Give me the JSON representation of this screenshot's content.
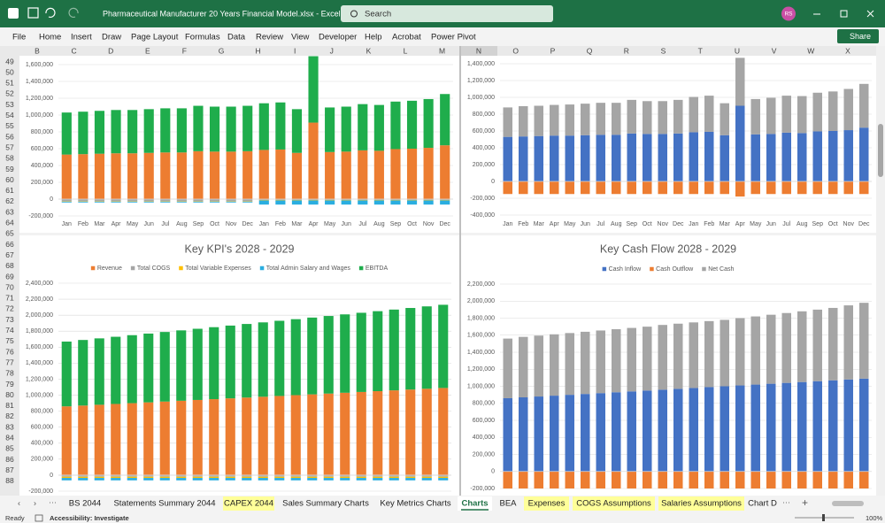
{
  "window": {
    "title": "Pharmaceutical Manufacturer 20 Years Financial Model.xlsx  -  Excel",
    "search": "Search",
    "avatar": "RS"
  },
  "menu": [
    "File",
    "Home",
    "Insert",
    "Draw",
    "Page Layout",
    "Formulas",
    "Data",
    "Review",
    "View",
    "Developer",
    "Help",
    "Acrobat",
    "Power Pivot"
  ],
  "share": "Share",
  "columns_left": [
    "B",
    "C",
    "D",
    "E",
    "F",
    "G",
    "H",
    "I",
    "J",
    "K",
    "L",
    "M"
  ],
  "columns_right": [
    "N",
    "O",
    "P",
    "Q",
    "R",
    "S",
    "T",
    "U",
    "V",
    "W",
    "X"
  ],
  "rows": [
    49,
    50,
    51,
    52,
    53,
    54,
    55,
    56,
    57,
    58,
    59,
    60,
    61,
    62,
    63,
    64,
    65,
    66,
    67,
    68,
    69,
    70,
    71,
    72,
    73,
    74,
    75,
    76,
    77,
    78,
    79,
    80,
    81,
    82,
    83,
    84,
    85,
    86,
    87,
    88
  ],
  "sheet_tabs": [
    "BS 2044",
    "Statements Summary 2044",
    "CAPEX 2044",
    "Sales Summary Charts",
    "Key Metrics Charts",
    "Charts",
    "BEA",
    "Expenses",
    "COGS Assumptions",
    "Salaries Assumptions",
    "Chart D"
  ],
  "active_tab": "Charts",
  "highlighted_tabs": [
    "CAPEX 2044",
    "Expenses",
    "COGS Assumptions",
    "Salaries Assumptions"
  ],
  "status": {
    "ready": "Ready",
    "accessibility": "Accessibility: Investigate",
    "zoom": "100%"
  },
  "chart_data": [
    {
      "type": "bar",
      "stacked": true,
      "grid": true,
      "categories": [
        "Jan",
        "Feb",
        "Mar",
        "Apr",
        "May",
        "Jun",
        "Jul",
        "Aug",
        "Sep",
        "Oct",
        "Nov",
        "Dec",
        "Jan",
        "Feb",
        "Mar",
        "Apr",
        "May",
        "Jun",
        "Jul",
        "Aug",
        "Sep",
        "Oct",
        "Nov",
        "Dec"
      ],
      "ylim": [
        -200000,
        1700000
      ],
      "yticks": [
        {
          "value": -200000,
          "label": "-200,000"
        },
        0,
        {
          "value": 200000,
          "label": "200,000"
        },
        {
          "value": 400000,
          "label": "400,000"
        },
        {
          "value": 600000,
          "label": "600,000"
        },
        {
          "value": 800000,
          "label": "800,000"
        },
        {
          "value": 1000000,
          "label": "1,000,000"
        },
        {
          "value": 1200000,
          "label": "1,200,000"
        },
        {
          "value": 1400000,
          "label": "1,400,000"
        },
        {
          "value": 1600000,
          "label": "1,600,000"
        }
      ],
      "series": [
        {
          "color": "#ed7d31",
          "values": [
            530000,
            535000,
            540000,
            545000,
            545000,
            550000,
            555000,
            555000,
            570000,
            565000,
            565000,
            570000,
            585000,
            590000,
            550000,
            910000,
            560000,
            565000,
            580000,
            575000,
            595000,
            600000,
            610000,
            640000
          ]
        },
        {
          "color": "#a5a5a5",
          "values": [
            -25000,
            -25000,
            -25000,
            -25000,
            -25000,
            -25000,
            -25000,
            -25000,
            -25000,
            -25000,
            -25000,
            -25000,
            -10000,
            -10000,
            -10000,
            -10000,
            -10000,
            -10000,
            -10000,
            -10000,
            -10000,
            -10000,
            -10000,
            -10000
          ]
        },
        {
          "color": "#ffc000",
          "values": [
            -5000,
            -5000,
            -5000,
            -5000,
            -5000,
            -5000,
            -5000,
            -5000,
            -5000,
            -5000,
            -5000,
            -5000,
            -5000,
            -5000,
            -5000,
            -5000,
            -5000,
            -5000,
            -5000,
            -5000,
            -5000,
            -5000,
            -5000,
            -5000
          ]
        },
        {
          "color": "#2aaee0",
          "values": [
            -10000,
            -10000,
            -10000,
            -10000,
            -10000,
            -10000,
            -10000,
            -10000,
            -10000,
            -10000,
            -10000,
            -10000,
            -50000,
            -50000,
            -50000,
            -50000,
            -50000,
            -50000,
            -50000,
            -50000,
            -50000,
            -50000,
            -50000,
            -50000
          ]
        },
        {
          "color": "#1fad4c",
          "values": [
            500000,
            505000,
            510000,
            515000,
            515000,
            520000,
            525000,
            525000,
            540000,
            535000,
            535000,
            540000,
            555000,
            560000,
            520000,
            790000,
            530000,
            535000,
            550000,
            545000,
            565000,
            570000,
            580000,
            610000
          ]
        }
      ]
    },
    {
      "type": "bar",
      "stacked": true,
      "grid": true,
      "categories": [
        "Jan",
        "Feb",
        "Mar",
        "Apr",
        "May",
        "Jun",
        "Jul",
        "Aug",
        "Sep",
        "Oct",
        "Nov",
        "Dec",
        "Jan",
        "Feb",
        "Mar",
        "Apr",
        "May",
        "Jun",
        "Jul",
        "Aug",
        "Sep",
        "Oct",
        "Nov",
        "Dec"
      ],
      "ylim": [
        -400000,
        1500000
      ],
      "yticks": [
        {
          "value": -400000,
          "label": "-400,000"
        },
        {
          "value": -200000,
          "label": "-200,000"
        },
        0,
        {
          "value": 200000,
          "label": "200,000"
        },
        {
          "value": 400000,
          "label": "400,000"
        },
        {
          "value": 600000,
          "label": "600,000"
        },
        {
          "value": 800000,
          "label": "800,000"
        },
        {
          "value": 1000000,
          "label": "1,000,000"
        },
        {
          "value": 1200000,
          "label": "1,200,000"
        },
        {
          "value": 1400000,
          "label": "1,400,000"
        }
      ],
      "series": [
        {
          "color": "#4472c4",
          "values": [
            530000,
            535000,
            540000,
            545000,
            545000,
            550000,
            555000,
            555000,
            570000,
            565000,
            565000,
            570000,
            585000,
            590000,
            550000,
            900000,
            560000,
            565000,
            580000,
            575000,
            595000,
            600000,
            610000,
            640000
          ]
        },
        {
          "color": "#ed7d31",
          "values": [
            -150000,
            -150000,
            -150000,
            -150000,
            -150000,
            -150000,
            -150000,
            -150000,
            -150000,
            -150000,
            -150000,
            -150000,
            -150000,
            -150000,
            -150000,
            -180000,
            -150000,
            -150000,
            -150000,
            -150000,
            -150000,
            -150000,
            -150000,
            -150000
          ]
        },
        {
          "color": "#a5a5a5",
          "values": [
            350000,
            360000,
            360000,
            365000,
            370000,
            375000,
            380000,
            380000,
            400000,
            390000,
            390000,
            400000,
            420000,
            430000,
            380000,
            570000,
            420000,
            430000,
            440000,
            440000,
            460000,
            470000,
            490000,
            520000
          ]
        }
      ]
    },
    {
      "type": "bar",
      "stacked": true,
      "grid": true,
      "title": "Key KPI's 2028 - 2029",
      "ylim": [
        -200000,
        2400000
      ],
      "yticks": [
        {
          "value": -200000,
          "label": "-200,000"
        },
        0,
        {
          "value": 200000,
          "label": "200,000"
        },
        {
          "value": 400000,
          "label": "400,000"
        },
        {
          "value": 600000,
          "label": "600,000"
        },
        {
          "value": 800000,
          "label": "800,000"
        },
        {
          "value": 1000000,
          "label": "1,000,000"
        },
        {
          "value": 1200000,
          "label": "1,200,000"
        },
        {
          "value": 1400000,
          "label": "1,400,000"
        },
        {
          "value": 1600000,
          "label": "1,600,000"
        },
        {
          "value": 1800000,
          "label": "1,800,000"
        },
        {
          "value": 2000000,
          "label": "2,000,000"
        },
        {
          "value": 2200000,
          "label": "2,200,000"
        },
        {
          "value": 2400000,
          "label": "2,400,000"
        }
      ],
      "series": [
        {
          "name": "Revenue",
          "color": "#ed7d31",
          "values": [
            860000,
            870000,
            880000,
            890000,
            900000,
            910000,
            920000,
            930000,
            940000,
            950000,
            960000,
            970000,
            980000,
            990000,
            1000000,
            1010000,
            1020000,
            1030000,
            1040000,
            1050000,
            1060000,
            1070000,
            1080000,
            1090000
          ]
        },
        {
          "name": "Total COGS",
          "color": "#a5a5a5",
          "values": [
            -20000,
            -20000,
            -20000,
            -20000,
            -20000,
            -20000,
            -20000,
            -20000,
            -20000,
            -20000,
            -20000,
            -20000,
            -20000,
            -20000,
            -20000,
            -20000,
            -20000,
            -20000,
            -20000,
            -20000,
            -20000,
            -20000,
            -20000,
            -20000
          ]
        },
        {
          "name": "Total Variable Expenses",
          "color": "#ffc000",
          "values": [
            -15000,
            -15000,
            -15000,
            -15000,
            -15000,
            -15000,
            -15000,
            -15000,
            -15000,
            -15000,
            -15000,
            -15000,
            -15000,
            -15000,
            -15000,
            -15000,
            -15000,
            -15000,
            -15000,
            -15000,
            -15000,
            -15000,
            -15000,
            -15000
          ]
        },
        {
          "name": "Total Admin Salary and Wages",
          "color": "#2aaee0",
          "values": [
            -30000,
            -30000,
            -30000,
            -30000,
            -30000,
            -30000,
            -30000,
            -30000,
            -30000,
            -30000,
            -30000,
            -30000,
            -30000,
            -30000,
            -30000,
            -30000,
            -30000,
            -30000,
            -30000,
            -30000,
            -30000,
            -30000,
            -30000,
            -30000
          ]
        },
        {
          "name": "EBITDA",
          "color": "#1fad4c",
          "values": [
            810000,
            820000,
            830000,
            840000,
            850000,
            860000,
            870000,
            880000,
            890000,
            900000,
            910000,
            920000,
            930000,
            940000,
            950000,
            960000,
            970000,
            980000,
            990000,
            1000000,
            1010000,
            1020000,
            1030000,
            1040000
          ]
        }
      ]
    },
    {
      "type": "bar",
      "stacked": true,
      "grid": true,
      "title": "Key Cash Flow 2028 - 2029",
      "ylim": [
        -200000,
        2200000
      ],
      "yticks": [
        {
          "value": -200000,
          "label": "-200,000"
        },
        0,
        {
          "value": 200000,
          "label": "200,000"
        },
        {
          "value": 400000,
          "label": "400,000"
        },
        {
          "value": 600000,
          "label": "600,000"
        },
        {
          "value": 800000,
          "label": "800,000"
        },
        {
          "value": 1000000,
          "label": "1,000,000"
        },
        {
          "value": 1200000,
          "label": "1,200,000"
        },
        {
          "value": 1400000,
          "label": "1,400,000"
        },
        {
          "value": 1600000,
          "label": "1,600,000"
        },
        {
          "value": 1800000,
          "label": "1,800,000"
        },
        {
          "value": 2000000,
          "label": "2,000,000"
        },
        {
          "value": 2200000,
          "label": "2,200,000"
        }
      ],
      "series": [
        {
          "name": "Cash Inflow",
          "color": "#4472c4",
          "values": [
            860000,
            870000,
            880000,
            890000,
            900000,
            910000,
            920000,
            930000,
            940000,
            950000,
            960000,
            970000,
            980000,
            990000,
            1000000,
            1010000,
            1020000,
            1030000,
            1040000,
            1050000,
            1060000,
            1070000,
            1080000,
            1090000
          ]
        },
        {
          "name": "Cash Outflow",
          "color": "#ed7d31",
          "values": [
            -200000,
            -200000,
            -200000,
            -200000,
            -200000,
            -200000,
            -200000,
            -200000,
            -200000,
            -200000,
            -200000,
            -200000,
            -200000,
            -200000,
            -200000,
            -200000,
            -200000,
            -200000,
            -200000,
            -200000,
            -200000,
            -200000,
            -200000,
            -200000
          ]
        },
        {
          "name": "Net Cash",
          "color": "#a5a5a5",
          "values": [
            700000,
            710000,
            715000,
            720000,
            725000,
            730000,
            735000,
            740000,
            745000,
            750000,
            760000,
            765000,
            770000,
            775000,
            780000,
            790000,
            800000,
            810000,
            820000,
            830000,
            840000,
            850000,
            870000,
            890000
          ]
        }
      ]
    }
  ]
}
